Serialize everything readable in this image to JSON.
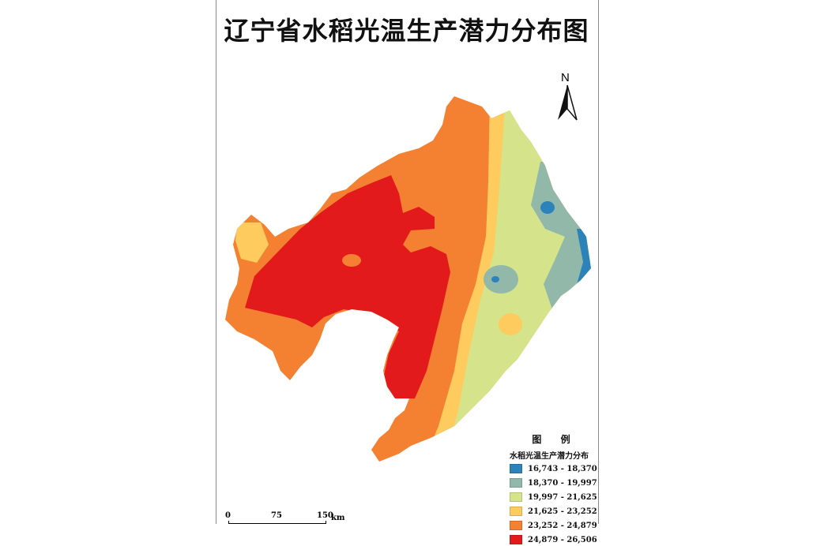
{
  "map": {
    "title": "辽宁省水稻光温生产潜力分布图",
    "north_label": "N",
    "legend": {
      "heading": "图 例",
      "subtitle": "水稻光温生产潜力分布",
      "classes": [
        {
          "label": "16,743 - 18,370",
          "color": "#2b83ba"
        },
        {
          "label": "18,370 - 19,997",
          "color": "#91b8a8"
        },
        {
          "label": "19,997 - 21,625",
          "color": "#d5e38a"
        },
        {
          "label": "21,625 - 23,252",
          "color": "#fdcb5e"
        },
        {
          "label": "23,252 - 24,879",
          "color": "#f38131"
        },
        {
          "label": "24,879 - 26,506",
          "color": "#e31a1c"
        }
      ]
    },
    "scale_bar": {
      "ticks": [
        "0",
        "75",
        "150"
      ],
      "unit": "km"
    }
  }
}
